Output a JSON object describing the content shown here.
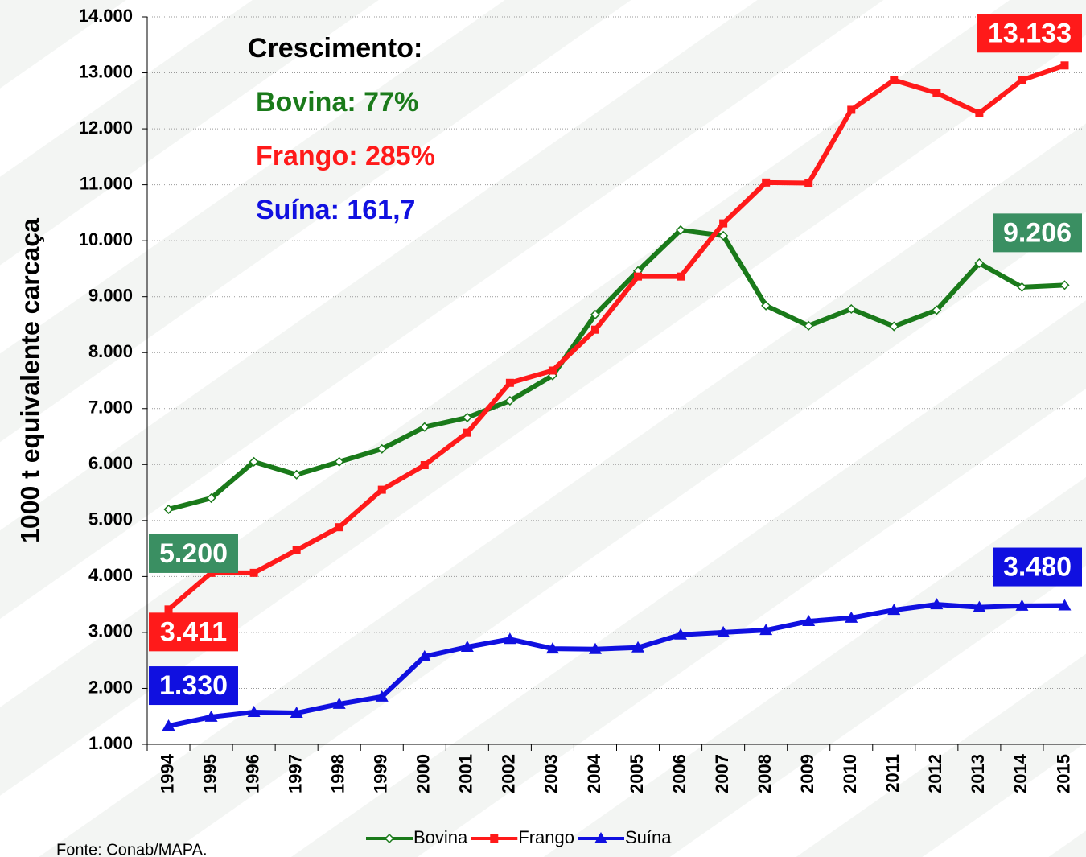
{
  "chart_data": {
    "type": "line",
    "y_label": "1000 t equivalente carcaça",
    "source": "Fonte: Conab/MAPA.",
    "categories": [
      "1994",
      "1995",
      "1996",
      "1997",
      "1998",
      "1999",
      "2000",
      "2001",
      "2002",
      "2003",
      "2004",
      "2005",
      "2006",
      "2007",
      "2008",
      "2009",
      "2010",
      "2011",
      "2012",
      "2013",
      "2014",
      "2015"
    ],
    "series": [
      {
        "name": "Bovina",
        "color": "#1a7a1a",
        "label_color": "#3a8f62",
        "marker": "diamond",
        "values": [
          5200,
          5400,
          6050,
          5820,
          6050,
          6280,
          6670,
          6840,
          7140,
          7590,
          8680,
          9460,
          10190,
          10090,
          8840,
          8480,
          8780,
          8470,
          8760,
          9600,
          9170,
          9206
        ],
        "value_labels": [
          "5.200",
          null,
          null,
          null,
          null,
          null,
          null,
          null,
          null,
          null,
          null,
          null,
          null,
          null,
          null,
          null,
          null,
          null,
          null,
          null,
          null,
          "9.206"
        ]
      },
      {
        "name": "Frango",
        "color": "#ff1a1a",
        "label_color": "#ff1a1a",
        "marker": "square",
        "values": [
          3411,
          4065,
          4065,
          4470,
          4880,
          5550,
          5990,
          6570,
          7460,
          7680,
          8410,
          9360,
          9360,
          10310,
          11040,
          11030,
          12340,
          12870,
          12640,
          12280,
          12870,
          13133
        ],
        "value_labels": [
          "3.411",
          null,
          null,
          null,
          null,
          null,
          null,
          null,
          null,
          null,
          null,
          null,
          null,
          null,
          null,
          null,
          null,
          null,
          null,
          null,
          null,
          "13.133"
        ]
      },
      {
        "name": "Suína",
        "color": "#1010e0",
        "label_color": "#1010e0",
        "marker": "triangle",
        "values": [
          1330,
          1490,
          1575,
          1560,
          1720,
          1850,
          2570,
          2740,
          2880,
          2710,
          2700,
          2730,
          2960,
          3000,
          3040,
          3200,
          3260,
          3400,
          3500,
          3450,
          3475,
          3480
        ],
        "value_labels": [
          "1.330",
          null,
          null,
          null,
          null,
          null,
          null,
          null,
          null,
          null,
          null,
          null,
          null,
          null,
          null,
          null,
          null,
          null,
          null,
          null,
          null,
          "3.480"
        ]
      }
    ],
    "annotations": [
      {
        "text": "Crescimento:",
        "color": "#000000"
      },
      {
        "text": "Bovina: 77%",
        "color": "#1a7a1a"
      },
      {
        "text": "Frango: 285%",
        "color": "#ff1a1a"
      },
      {
        "text": "Suína: 161,7",
        "color": "#1010e0"
      }
    ],
    "ylim": [
      1000,
      14000
    ],
    "yticks": [
      {
        "value": 1000,
        "label": "1.000"
      },
      {
        "value": 2000,
        "label": "2.000"
      },
      {
        "value": 3000,
        "label": "3.000"
      },
      {
        "value": 4000,
        "label": "4.000"
      },
      {
        "value": 5000,
        "label": "5.000"
      },
      {
        "value": 6000,
        "label": "6.000"
      },
      {
        "value": 7000,
        "label": "7.000"
      },
      {
        "value": 8000,
        "label": "8.000"
      },
      {
        "value": 9000,
        "label": "9.000"
      },
      {
        "value": 10000,
        "label": "10.000"
      },
      {
        "value": 11000,
        "label": "11.000"
      },
      {
        "value": 12000,
        "label": "12.000"
      },
      {
        "value": 13000,
        "label": "13.000"
      },
      {
        "value": 14000,
        "label": "14.000"
      }
    ],
    "grid": true,
    "legend": "bottom"
  }
}
